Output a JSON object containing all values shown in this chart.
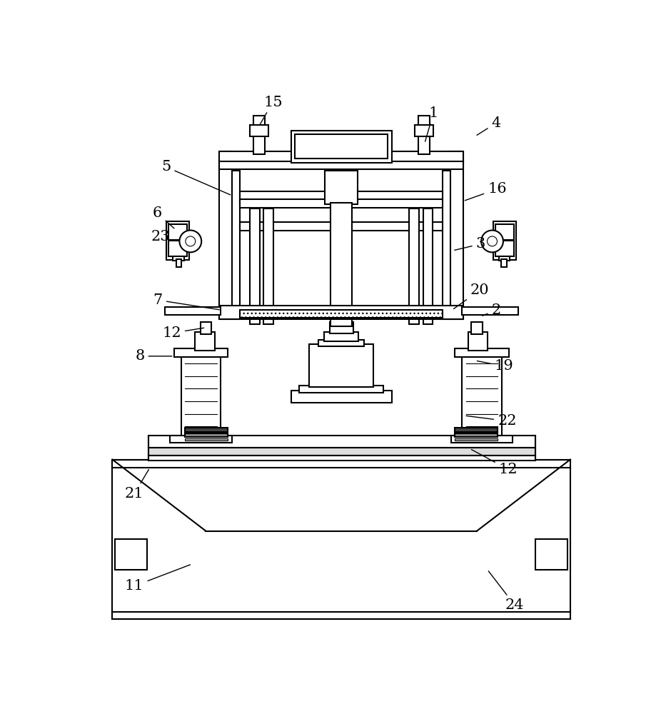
{
  "bg_color": "#ffffff",
  "lw": 1.5,
  "tlw": 0.8,
  "figsize": [
    9.33,
    10.0
  ],
  "dpi": 100
}
